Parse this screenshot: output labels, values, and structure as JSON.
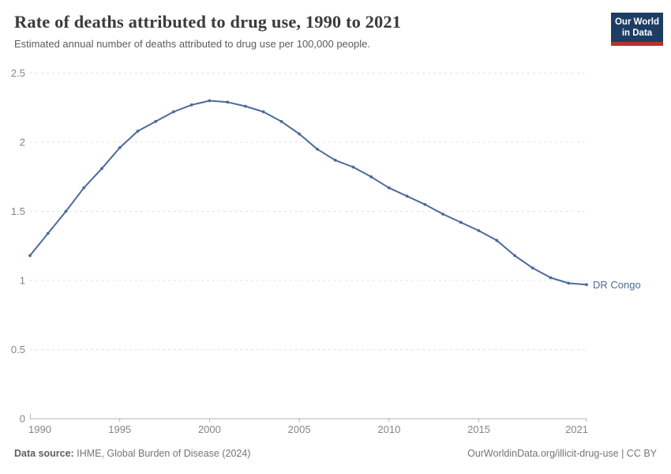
{
  "header": {
    "title": "Rate of deaths attributed to drug use, 1990 to 2021",
    "subtitle": "Estimated annual number of deaths attributed to drug use per 100,000 people.",
    "logo_line1": "Our World",
    "logo_line2": "in Data"
  },
  "chart_data": {
    "type": "line",
    "title": "Rate of deaths attributed to drug use, 1990 to 2021",
    "ylabel": "Estimated annual deaths attributed to drug use per 100,000 people",
    "x": [
      1990,
      1991,
      1992,
      1993,
      1994,
      1995,
      1996,
      1997,
      1998,
      1999,
      2000,
      2001,
      2002,
      2003,
      2004,
      2005,
      2006,
      2007,
      2008,
      2009,
      2010,
      2011,
      2012,
      2013,
      2014,
      2015,
      2016,
      2017,
      2018,
      2019,
      2020,
      2021
    ],
    "series": [
      {
        "name": "DR Congo",
        "color": "#4C6A9C",
        "values": [
          1.18,
          1.34,
          1.5,
          1.67,
          1.81,
          1.96,
          2.08,
          2.15,
          2.22,
          2.27,
          2.3,
          2.29,
          2.26,
          2.22,
          2.15,
          2.06,
          1.95,
          1.87,
          1.82,
          1.75,
          1.67,
          1.61,
          1.55,
          1.48,
          1.42,
          1.36,
          1.29,
          1.18,
          1.09,
          1.02,
          0.98,
          0.97
        ]
      }
    ],
    "end_label": "DR Congo",
    "xlim": [
      1990,
      2021
    ],
    "ylim": [
      0,
      2.5
    ],
    "xticks": [
      1990,
      1995,
      2000,
      2005,
      2010,
      2015,
      2021
    ],
    "yticks": [
      0,
      0.5,
      1,
      1.5,
      2,
      2.5
    ],
    "grid": "horizontal-dashed",
    "legend_position": "line-end"
  },
  "footer": {
    "source_label": "Data source:",
    "source_value": "IHME, Global Burden of Disease (2024)",
    "license": "OurWorldinData.org/illicit-drug-use | CC BY"
  },
  "colors": {
    "line": "#4C6A9C",
    "grid": "#e3e3e3",
    "axis": "#b3b3b3",
    "tick_text": "#858585",
    "logo_bg": "#1D3D63",
    "logo_red": "#B5332A"
  }
}
